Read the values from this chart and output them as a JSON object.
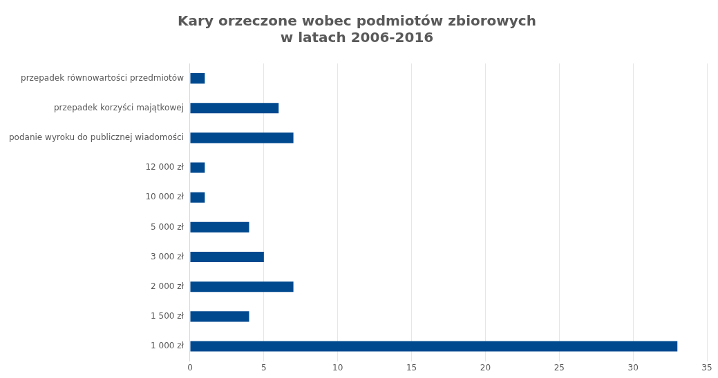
{
  "chart_data": {
    "type": "bar",
    "orientation": "horizontal",
    "title": "Kary orzeczone wobec podmiotów zbiorowych\nw latach 2006-2016",
    "categories": [
      "przepadek równowartości przedmiotów",
      "przepadek korzyści majątkowej",
      "podanie wyroku do publicznej wiadomości",
      "12 000 zł",
      "10 000 zł",
      "5 000 zł",
      "3 000 zł",
      "2 000 zł",
      "1 500 zł",
      "1 000 zł"
    ],
    "values": [
      1,
      6,
      7,
      1,
      1,
      4,
      5,
      7,
      4,
      33
    ],
    "color": "#00498f",
    "xlim": [
      0,
      35
    ],
    "xticks": [
      0,
      5,
      10,
      15,
      20,
      25,
      30,
      35
    ],
    "grid": "x",
    "legend": false
  }
}
